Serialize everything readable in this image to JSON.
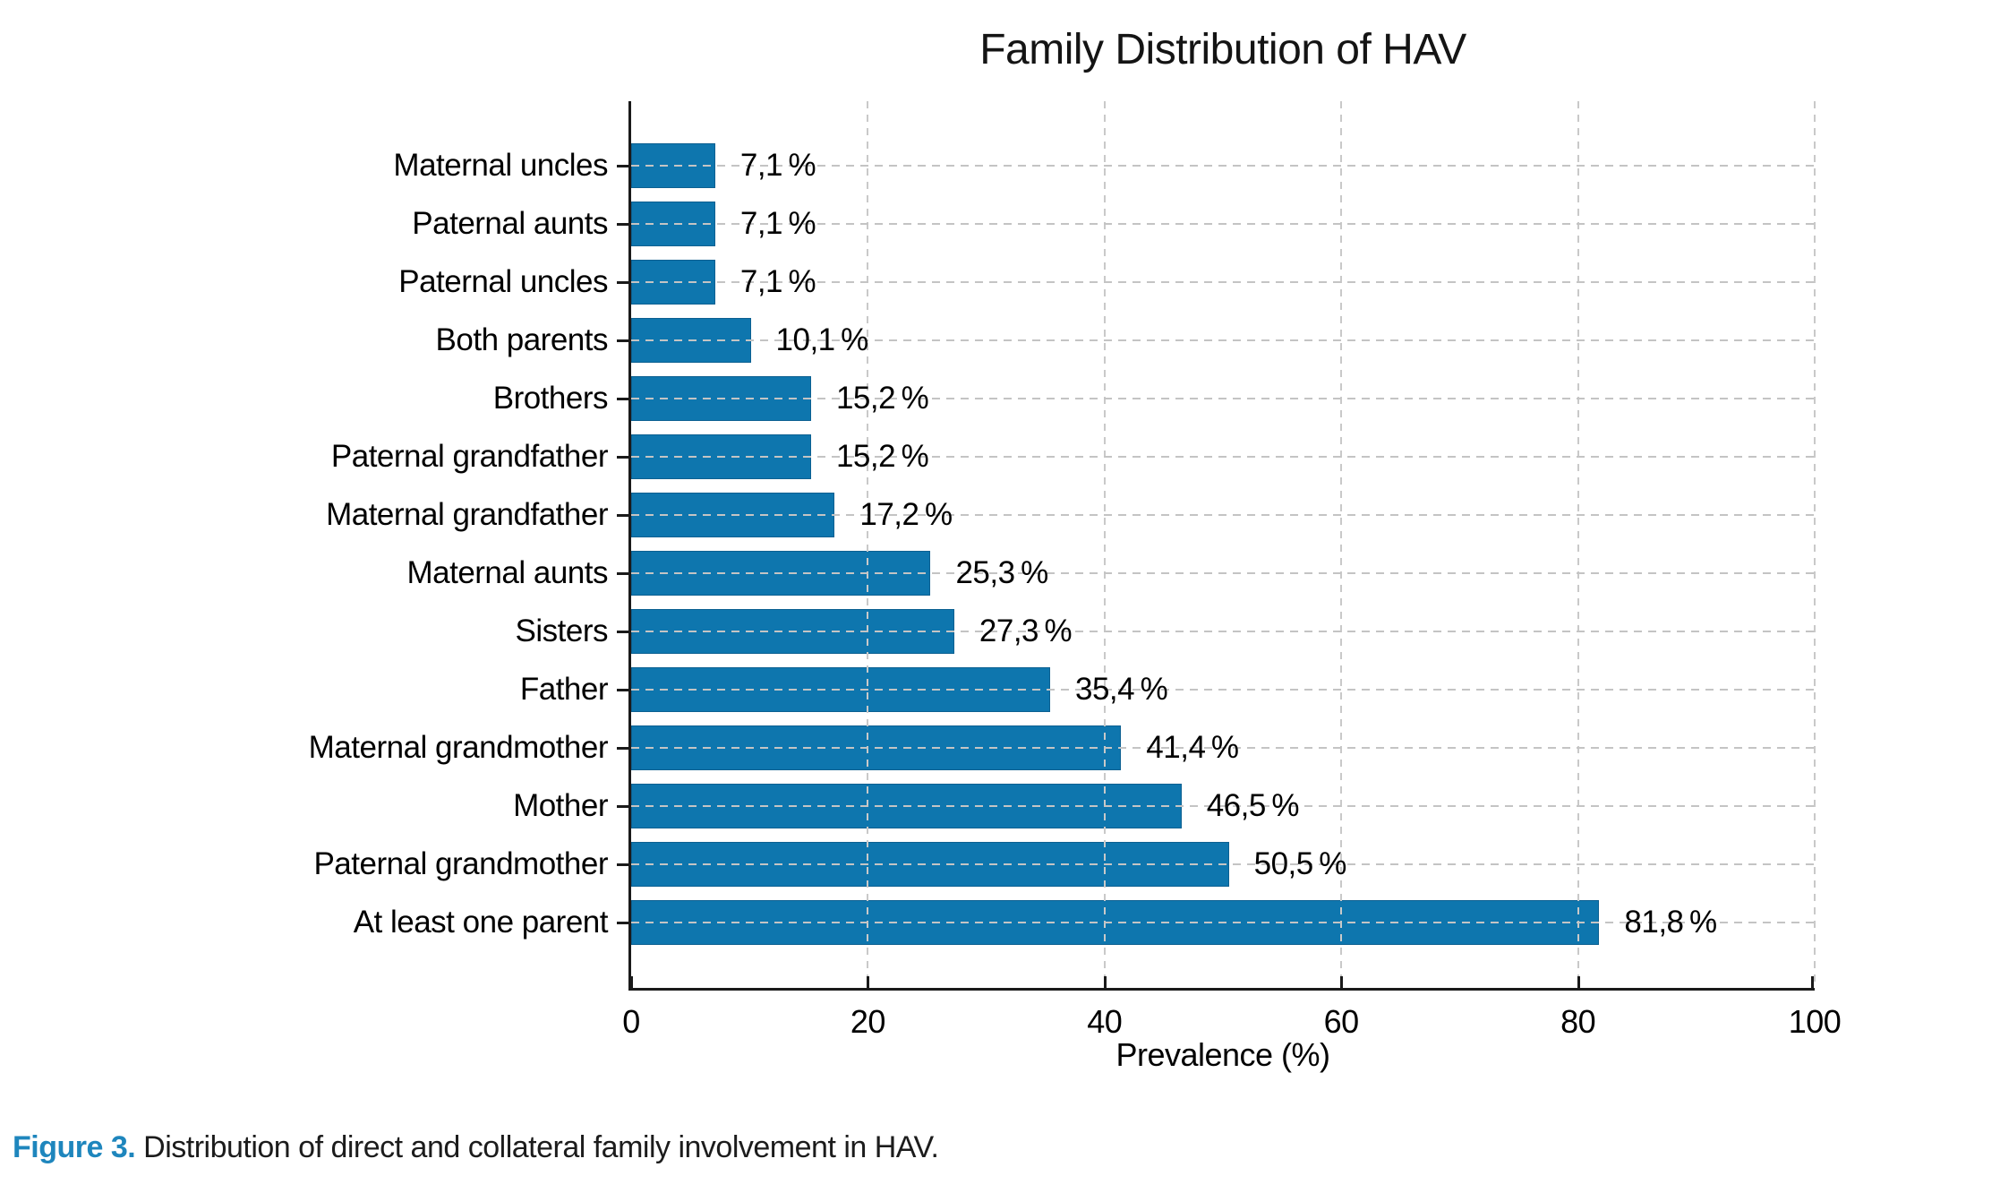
{
  "figure": {
    "caption_label": "Figure 3.",
    "caption_text": " Distribution of direct and collateral family involvement in HAV.",
    "caption_accent_color": "#1e86bd",
    "text_color": "#000000",
    "background_color": "#ffffff"
  },
  "chart_data": {
    "type": "bar",
    "orientation": "horizontal",
    "title": "Family Distribution of HAV",
    "xlabel": "Prevalence (%)",
    "xlim": [
      0,
      100
    ],
    "x_ticks": [
      0,
      20,
      40,
      60,
      80,
      100
    ],
    "x_tick_labels": [
      "0",
      "20",
      "40",
      "60",
      "80",
      "100"
    ],
    "grid": "dashed gridlines on both axes, drawn above bars",
    "legend": "none",
    "bar_color": "#0e76ae",
    "categories": [
      "Maternal uncles",
      "Paternal aunts",
      "Paternal uncles",
      "Both parents",
      "Brothers",
      "Paternal grandfather",
      "Maternal grandfather",
      "Maternal aunts",
      "Sisters",
      "Father",
      "Maternal grandmother",
      "Mother",
      "Paternal grandmother",
      "At least one parent"
    ],
    "values": [
      7.1,
      7.1,
      7.1,
      10.1,
      15.2,
      15.2,
      17.2,
      25.3,
      27.3,
      35.4,
      41.4,
      46.5,
      50.5,
      81.8
    ],
    "value_labels": [
      "7,1 %",
      "7,1 %",
      "7,1 %",
      "10,1 %",
      "15,2 %",
      "15,2 %",
      "17,2 %",
      "25,3 %",
      "27,3 %",
      "35,4 %",
      "41,4 %",
      "46,5 %",
      "50,5 %",
      "81,8 %"
    ]
  }
}
